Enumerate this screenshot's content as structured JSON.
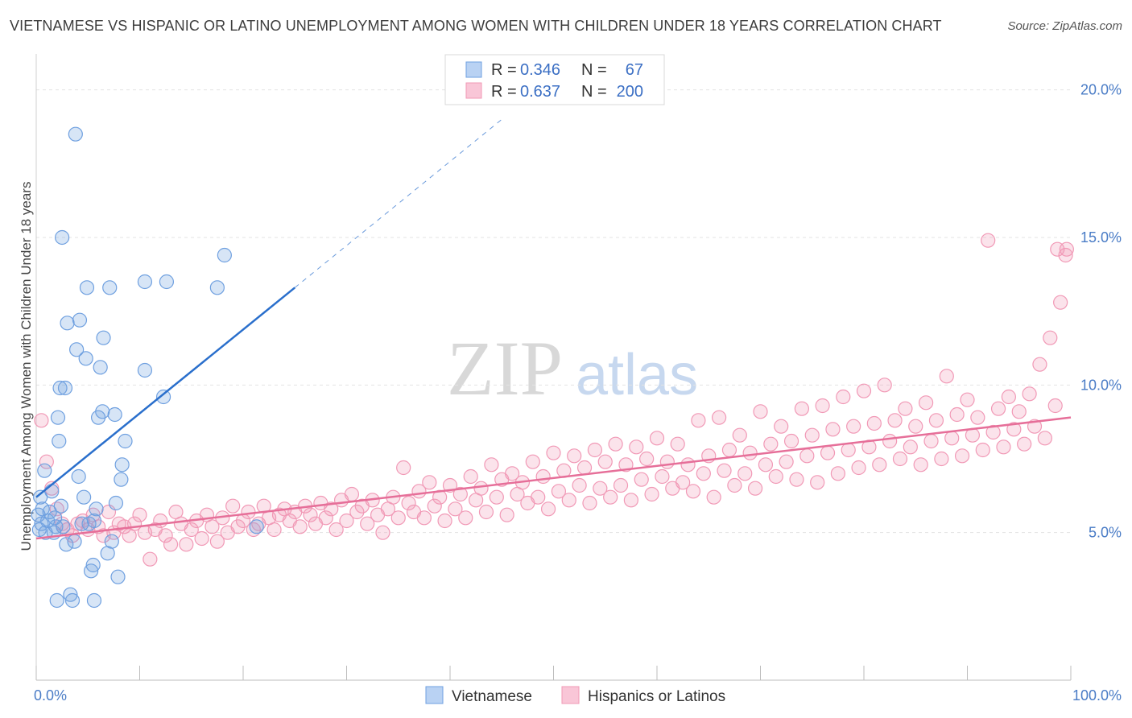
{
  "header": {
    "title": "VIETNAMESE VS HISPANIC OR LATINO UNEMPLOYMENT AMONG WOMEN WITH CHILDREN UNDER 18 YEARS CORRELATION CHART",
    "source": "Source: ZipAtlas.com"
  },
  "watermark": {
    "zip": "ZIP",
    "atlas": "atlas"
  },
  "legend": {
    "rows": [
      {
        "r_label": "R =",
        "r_value": "0.346",
        "n_label": "N =",
        "n_value": "67"
      },
      {
        "r_label": "R =",
        "r_value": "0.637",
        "n_label": "N =",
        "n_value": "200"
      }
    ]
  },
  "bottom_legend": {
    "series1": "Vietnamese",
    "series2": "Hispanics or Latinos"
  },
  "chart_data": {
    "type": "scatter",
    "ylabel": "Unemployment Among Women with Children Under 18 years",
    "xlim": [
      0,
      100
    ],
    "ylim": [
      0,
      21
    ],
    "x_ticks": [
      "0.0%",
      "100.0%"
    ],
    "y_ticks": [
      {
        "value": 5,
        "label": "5.0%"
      },
      {
        "value": 10,
        "label": "10.0%"
      },
      {
        "value": 15,
        "label": "15.0%"
      },
      {
        "value": 20,
        "label": "20.0%"
      }
    ],
    "colors": {
      "vietnamese": "#6fa0e0",
      "hispanic": "#f199b6",
      "vietnamese_line": "#2a6fcc",
      "hispanic_line": "#e66f99"
    },
    "series": [
      {
        "name": "Vietnamese",
        "trend": {
          "x0": 0,
          "y0": 6.2,
          "x1": 25,
          "y1": 13.3,
          "dash_to_x": 45,
          "dash_to_y": 19.0
        },
        "points": [
          [
            0.2,
            5.6
          ],
          [
            0.3,
            5.1
          ],
          [
            0.4,
            6.2
          ],
          [
            0.5,
            5.3
          ],
          [
            0.6,
            5.8
          ],
          [
            0.8,
            7.1
          ],
          [
            0.9,
            5.0
          ],
          [
            1.1,
            5.4
          ],
          [
            1.3,
            5.7
          ],
          [
            1.5,
            6.4
          ],
          [
            1.7,
            5.0
          ],
          [
            1.8,
            5.5
          ],
          [
            1.9,
            5.2
          ],
          [
            2.0,
            2.7
          ],
          [
            2.2,
            8.1
          ],
          [
            2.3,
            9.9
          ],
          [
            2.1,
            8.9
          ],
          [
            2.4,
            5.9
          ],
          [
            2.5,
            15.0
          ],
          [
            2.6,
            5.2
          ],
          [
            2.8,
            9.9
          ],
          [
            2.9,
            4.6
          ],
          [
            3.0,
            12.1
          ],
          [
            3.3,
            2.9
          ],
          [
            3.5,
            2.7
          ],
          [
            3.7,
            4.7
          ],
          [
            3.8,
            18.5
          ],
          [
            3.9,
            11.2
          ],
          [
            4.1,
            6.9
          ],
          [
            4.2,
            12.2
          ],
          [
            4.4,
            5.3
          ],
          [
            4.6,
            6.2
          ],
          [
            4.8,
            10.9
          ],
          [
            4.9,
            13.3
          ],
          [
            5.1,
            5.3
          ],
          [
            5.3,
            3.7
          ],
          [
            5.5,
            3.9
          ],
          [
            5.6,
            5.4
          ],
          [
            5.6,
            2.7
          ],
          [
            5.8,
            5.8
          ],
          [
            6.0,
            8.9
          ],
          [
            6.2,
            10.6
          ],
          [
            6.4,
            9.1
          ],
          [
            6.5,
            11.6
          ],
          [
            6.9,
            4.3
          ],
          [
            7.1,
            13.3
          ],
          [
            7.3,
            4.7
          ],
          [
            7.6,
            9.0
          ],
          [
            7.7,
            6.0
          ],
          [
            7.9,
            3.5
          ],
          [
            8.2,
            6.8
          ],
          [
            8.3,
            7.3
          ],
          [
            8.6,
            8.1
          ],
          [
            10.5,
            13.5
          ],
          [
            10.5,
            10.5
          ],
          [
            12.6,
            13.5
          ],
          [
            12.3,
            9.6
          ],
          [
            17.5,
            13.3
          ],
          [
            18.2,
            14.4
          ],
          [
            21.3,
            5.2
          ]
        ]
      },
      {
        "name": "Hispanics or Latinos",
        "trend": {
          "x0": 0,
          "y0": 4.8,
          "x1": 100,
          "y1": 8.9
        },
        "points": [
          [
            0.5,
            8.8
          ],
          [
            1.0,
            7.4
          ],
          [
            1.5,
            6.5
          ],
          [
            2.0,
            5.8
          ],
          [
            2.5,
            5.3
          ],
          [
            3.0,
            5.1
          ],
          [
            3.5,
            4.9
          ],
          [
            4.0,
            5.3
          ],
          [
            4.5,
            5.4
          ],
          [
            5.0,
            5.1
          ],
          [
            5.5,
            5.6
          ],
          [
            6.0,
            5.2
          ],
          [
            6.5,
            4.9
          ],
          [
            7.0,
            5.7
          ],
          [
            7.5,
            5.0
          ],
          [
            8.0,
            5.3
          ],
          [
            8.5,
            5.2
          ],
          [
            9.0,
            4.9
          ],
          [
            9.5,
            5.3
          ],
          [
            10.0,
            5.6
          ],
          [
            10.5,
            5.0
          ],
          [
            11.0,
            4.1
          ],
          [
            11.5,
            5.1
          ],
          [
            12.0,
            5.4
          ],
          [
            12.5,
            4.9
          ],
          [
            13.0,
            4.6
          ],
          [
            13.5,
            5.7
          ],
          [
            14.0,
            5.3
          ],
          [
            14.5,
            4.6
          ],
          [
            15.0,
            5.1
          ],
          [
            15.5,
            5.4
          ],
          [
            16.0,
            4.8
          ],
          [
            16.5,
            5.6
          ],
          [
            17.0,
            5.2
          ],
          [
            17.5,
            4.7
          ],
          [
            18.0,
            5.5
          ],
          [
            18.5,
            5.0
          ],
          [
            19.0,
            5.9
          ],
          [
            19.5,
            5.2
          ],
          [
            20.0,
            5.4
          ],
          [
            20.5,
            5.7
          ],
          [
            21.0,
            5.1
          ],
          [
            21.5,
            5.3
          ],
          [
            22.0,
            5.9
          ],
          [
            22.5,
            5.5
          ],
          [
            23.0,
            5.1
          ],
          [
            23.5,
            5.6
          ],
          [
            24.0,
            5.8
          ],
          [
            24.5,
            5.4
          ],
          [
            25.0,
            5.7
          ],
          [
            25.5,
            5.2
          ],
          [
            26.0,
            5.9
          ],
          [
            26.5,
            5.6
          ],
          [
            27.0,
            5.3
          ],
          [
            27.5,
            6.0
          ],
          [
            28.0,
            5.5
          ],
          [
            28.5,
            5.8
          ],
          [
            29.0,
            5.1
          ],
          [
            29.5,
            6.1
          ],
          [
            30.0,
            5.4
          ],
          [
            30.5,
            6.3
          ],
          [
            31.0,
            5.7
          ],
          [
            31.5,
            5.9
          ],
          [
            32.0,
            5.3
          ],
          [
            32.5,
            6.1
          ],
          [
            33.0,
            5.6
          ],
          [
            33.5,
            5.0
          ],
          [
            34.0,
            5.8
          ],
          [
            34.5,
            6.2
          ],
          [
            35.0,
            5.5
          ],
          [
            35.5,
            7.2
          ],
          [
            36.0,
            6.0
          ],
          [
            36.5,
            5.7
          ],
          [
            37.0,
            6.4
          ],
          [
            37.5,
            5.5
          ],
          [
            38.0,
            6.7
          ],
          [
            38.5,
            5.9
          ],
          [
            39.0,
            6.2
          ],
          [
            39.5,
            5.4
          ],
          [
            40.0,
            6.6
          ],
          [
            40.5,
            5.8
          ],
          [
            41.0,
            6.3
          ],
          [
            41.5,
            5.5
          ],
          [
            42.0,
            6.9
          ],
          [
            42.5,
            6.1
          ],
          [
            43.0,
            6.5
          ],
          [
            43.5,
            5.7
          ],
          [
            44.0,
            7.3
          ],
          [
            44.5,
            6.2
          ],
          [
            45.0,
            6.8
          ],
          [
            45.5,
            5.6
          ],
          [
            46.0,
            7.0
          ],
          [
            46.5,
            6.3
          ],
          [
            47.0,
            6.7
          ],
          [
            47.5,
            6.0
          ],
          [
            48.0,
            7.4
          ],
          [
            48.5,
            6.2
          ],
          [
            49.0,
            6.9
          ],
          [
            49.5,
            5.8
          ],
          [
            50.0,
            7.7
          ],
          [
            50.5,
            6.4
          ],
          [
            51.0,
            7.1
          ],
          [
            51.5,
            6.1
          ],
          [
            52.0,
            7.6
          ],
          [
            52.5,
            6.6
          ],
          [
            53.0,
            7.2
          ],
          [
            53.5,
            6.0
          ],
          [
            54.0,
            7.8
          ],
          [
            54.5,
            6.5
          ],
          [
            55.0,
            7.4
          ],
          [
            55.5,
            6.2
          ],
          [
            56.0,
            8.0
          ],
          [
            56.5,
            6.6
          ],
          [
            57.0,
            7.3
          ],
          [
            57.5,
            6.1
          ],
          [
            58.0,
            7.9
          ],
          [
            58.5,
            6.8
          ],
          [
            59.0,
            7.5
          ],
          [
            59.5,
            6.3
          ],
          [
            60.0,
            8.2
          ],
          [
            60.5,
            6.9
          ],
          [
            61.0,
            7.4
          ],
          [
            61.5,
            6.5
          ],
          [
            62.0,
            8.0
          ],
          [
            62.5,
            6.7
          ],
          [
            63.0,
            7.3
          ],
          [
            63.5,
            6.4
          ],
          [
            64.0,
            8.8
          ],
          [
            64.5,
            7.0
          ],
          [
            65.0,
            7.6
          ],
          [
            65.5,
            6.2
          ],
          [
            66.0,
            8.9
          ],
          [
            66.5,
            7.1
          ],
          [
            67.0,
            7.8
          ],
          [
            67.5,
            6.6
          ],
          [
            68.0,
            8.3
          ],
          [
            68.5,
            7.0
          ],
          [
            69.0,
            7.7
          ],
          [
            69.5,
            6.5
          ],
          [
            70.0,
            9.1
          ],
          [
            70.5,
            7.3
          ],
          [
            71.0,
            8.0
          ],
          [
            71.5,
            6.9
          ],
          [
            72.0,
            8.6
          ],
          [
            72.5,
            7.4
          ],
          [
            73.0,
            8.1
          ],
          [
            73.5,
            6.8
          ],
          [
            74.0,
            9.2
          ],
          [
            74.5,
            7.6
          ],
          [
            75.0,
            8.3
          ],
          [
            75.5,
            6.7
          ],
          [
            76.0,
            9.3
          ],
          [
            76.5,
            7.7
          ],
          [
            77.0,
            8.5
          ],
          [
            77.5,
            7.0
          ],
          [
            78.0,
            9.6
          ],
          [
            78.5,
            7.8
          ],
          [
            79.0,
            8.6
          ],
          [
            79.5,
            7.2
          ],
          [
            80.0,
            9.8
          ],
          [
            80.5,
            7.9
          ],
          [
            81.0,
            8.7
          ],
          [
            81.5,
            7.3
          ],
          [
            82.0,
            10.0
          ],
          [
            82.5,
            8.1
          ],
          [
            83.0,
            8.8
          ],
          [
            83.5,
            7.5
          ],
          [
            84.0,
            9.2
          ],
          [
            84.5,
            7.9
          ],
          [
            85.0,
            8.6
          ],
          [
            85.5,
            7.3
          ],
          [
            86.0,
            9.4
          ],
          [
            86.5,
            8.1
          ],
          [
            87.0,
            8.8
          ],
          [
            87.5,
            7.5
          ],
          [
            88.0,
            10.3
          ],
          [
            88.5,
            8.2
          ],
          [
            89.0,
            9.0
          ],
          [
            89.5,
            7.6
          ],
          [
            90.0,
            9.5
          ],
          [
            90.5,
            8.3
          ],
          [
            91.0,
            8.9
          ],
          [
            91.5,
            7.8
          ],
          [
            92.0,
            14.9
          ],
          [
            92.5,
            8.4
          ],
          [
            93.0,
            9.2
          ],
          [
            93.5,
            7.9
          ],
          [
            94.0,
            9.6
          ],
          [
            94.5,
            8.5
          ],
          [
            95.0,
            9.1
          ],
          [
            95.5,
            8.0
          ],
          [
            96.0,
            9.7
          ],
          [
            96.5,
            8.6
          ],
          [
            97.0,
            10.7
          ],
          [
            97.5,
            8.2
          ],
          [
            98.0,
            11.6
          ],
          [
            98.5,
            9.3
          ],
          [
            99.0,
            12.8
          ],
          [
            99.5,
            14.4
          ],
          [
            99.6,
            14.6
          ],
          [
            98.7,
            14.6
          ]
        ]
      }
    ],
    "legend_position": "top-center",
    "grid": true
  }
}
